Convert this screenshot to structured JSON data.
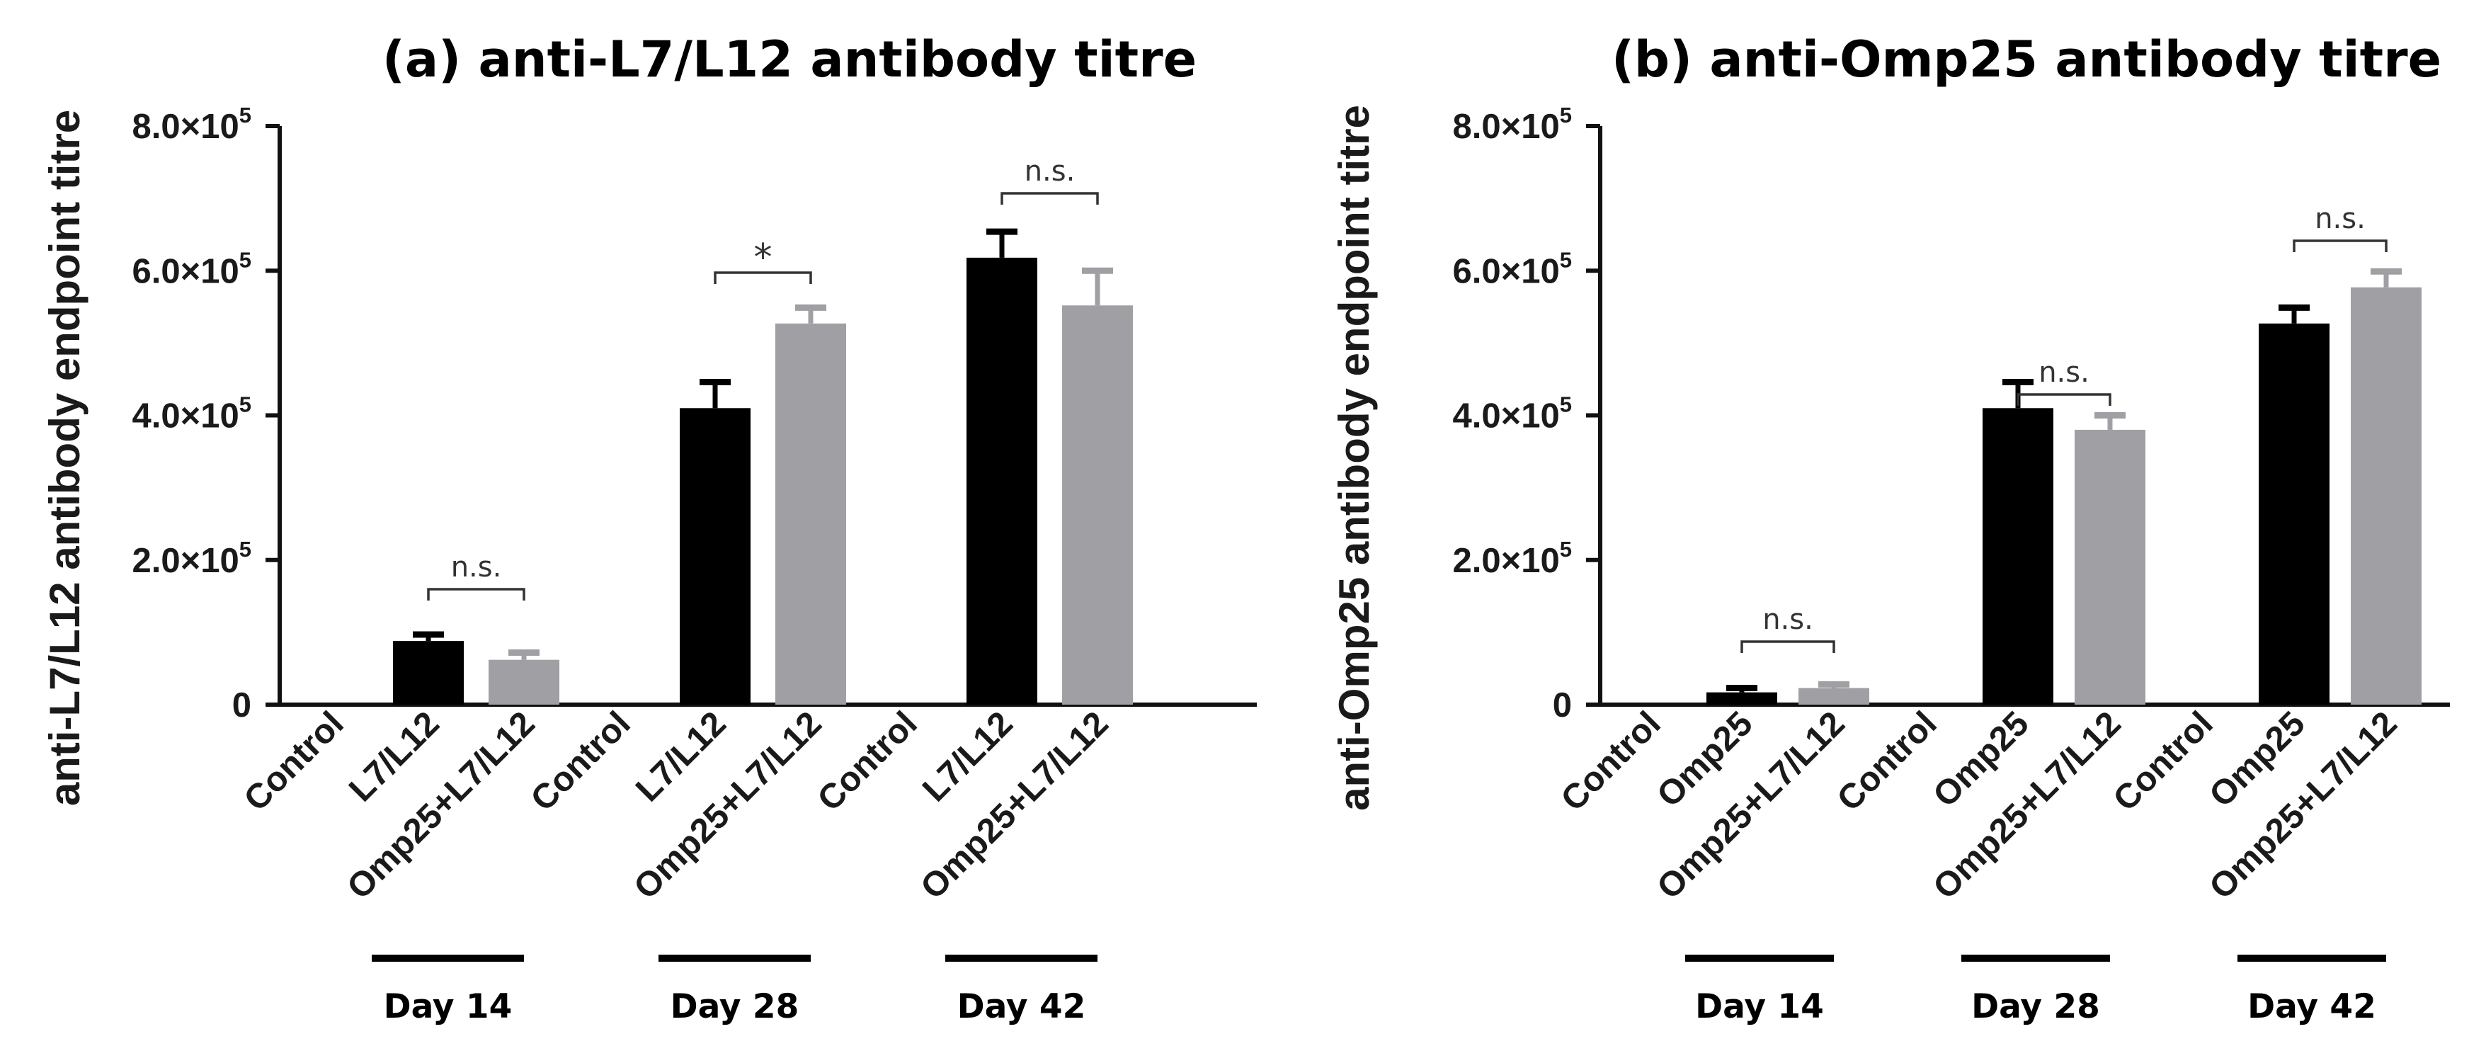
{
  "chart_data": [
    {
      "type": "bar",
      "title": "(a) anti-L7/L12 antibody titre",
      "ylabel": "anti-L7/L12 antibody endpoint titre",
      "xlabel": "",
      "ylim": [
        0,
        800000
      ],
      "ytick_labels": [
        {
          "mantissa": "0",
          "exp": ""
        },
        {
          "mantissa": "2.0×10",
          "exp": "5"
        },
        {
          "mantissa": "4.0×10",
          "exp": "5"
        },
        {
          "mantissa": "6.0×10",
          "exp": "5"
        },
        {
          "mantissa": "8.0×10",
          "exp": "5"
        }
      ],
      "groups": [
        {
          "label": "Day 14",
          "categories": [
            "Control",
            "L7/L12",
            "Omp25+L7/L12"
          ],
          "values": [
            0,
            88000,
            62000
          ],
          "errors": [
            0,
            9000,
            10000
          ],
          "sig": "n.s."
        },
        {
          "label": "Day 28",
          "categories": [
            "Control",
            "L7/L12",
            "Omp25+L7/L12"
          ],
          "values": [
            0,
            410000,
            527000
          ],
          "errors": [
            0,
            36000,
            22000
          ],
          "sig": "*"
        },
        {
          "label": "Day 42",
          "categories": [
            "Control",
            "L7/L12",
            "Omp25+L7/L12"
          ],
          "values": [
            0,
            618000,
            552000
          ],
          "errors": [
            0,
            36000,
            48000
          ],
          "sig": "n.s."
        }
      ]
    },
    {
      "type": "bar",
      "title": "(b) anti-Omp25 antibody titre",
      "ylabel": "anti-Omp25 antibody endpoint titre",
      "xlabel": "",
      "ylim": [
        0,
        800000
      ],
      "ytick_labels": [
        {
          "mantissa": "0",
          "exp": ""
        },
        {
          "mantissa": "2.0×10",
          "exp": "5"
        },
        {
          "mantissa": "4.0×10",
          "exp": "5"
        },
        {
          "mantissa": "6.0×10",
          "exp": "5"
        },
        {
          "mantissa": "8.0×10",
          "exp": "5"
        }
      ],
      "groups": [
        {
          "label": "Day 14",
          "categories": [
            "Control",
            "Omp25",
            "Omp25+L7/L12"
          ],
          "values": [
            0,
            17000,
            23000
          ],
          "errors": [
            0,
            6000,
            5000
          ],
          "sig": "n.s."
        },
        {
          "label": "Day 28",
          "categories": [
            "Control",
            "Omp25",
            "Omp25+L7/L12"
          ],
          "values": [
            0,
            410000,
            380000
          ],
          "errors": [
            0,
            36000,
            20000
          ],
          "sig": "n.s."
        },
        {
          "label": "Day 42",
          "categories": [
            "Control",
            "Omp25",
            "Omp25+L7/L12"
          ],
          "values": [
            0,
            527000,
            577000
          ],
          "errors": [
            0,
            22000,
            22000
          ],
          "sig": "n.s."
        }
      ]
    }
  ],
  "colors": {
    "series_primary": "#000000",
    "series_secondary": "#a0a0a4",
    "axis": "#111111",
    "bracket": "#333333"
  }
}
